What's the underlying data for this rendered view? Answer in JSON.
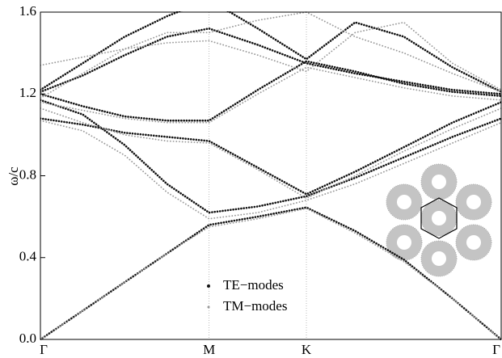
{
  "chart_data": {
    "type": "line",
    "y_label": "ω/c",
    "x": [
      0,
      0.25,
      0.5,
      0.75,
      1,
      1.289,
      1.577,
      1.866,
      2.155,
      2.443,
      2.732
    ],
    "xlim": [
      0,
      2.732
    ],
    "xticks": [
      {
        "value": 0,
        "label": "Γ"
      },
      {
        "value": 1,
        "label": "M"
      },
      {
        "value": 1.577,
        "label": "K"
      },
      {
        "value": 2.732,
        "label": "Γ"
      }
    ],
    "ylim": [
      0,
      1.6
    ],
    "yticks": [
      {
        "value": 0,
        "label": "0.0"
      },
      0.4,
      0.8,
      1.2,
      1.6
    ],
    "grid": true,
    "series": [
      {
        "name": "TE−modes",
        "color": "#111111",
        "bands": [
          [
            0,
            0.14,
            0.28,
            0.42,
            0.56,
            0.6,
            0.645,
            0.53,
            0.39,
            0.2,
            0
          ],
          [
            1.17,
            1.1,
            0.95,
            0.76,
            0.62,
            0.65,
            0.7,
            0.79,
            0.89,
            0.99,
            1.08
          ],
          [
            1.08,
            1.05,
            1.01,
            0.99,
            0.97,
            0.84,
            0.71,
            0.82,
            0.94,
            1.06,
            1.16
          ],
          [
            1.2,
            1.14,
            1.09,
            1.07,
            1.07,
            1.22,
            1.36,
            1.31,
            1.25,
            1.21,
            1.19
          ],
          [
            1.21,
            1.29,
            1.39,
            1.48,
            1.52,
            1.44,
            1.35,
            1.3,
            1.26,
            1.22,
            1.2
          ],
          [
            1.22,
            1.35,
            1.48,
            1.58,
            1.66,
            1.52,
            1.37,
            1.55,
            1.48,
            1.33,
            1.21
          ]
        ]
      },
      {
        "name": "TM−modes",
        "color": "#999999",
        "bands": [
          [
            0,
            0.14,
            0.28,
            0.42,
            0.55,
            0.59,
            0.64,
            0.52,
            0.38,
            0.2,
            0
          ],
          [
            1.07,
            1.02,
            0.9,
            0.72,
            0.59,
            0.62,
            0.68,
            0.76,
            0.86,
            0.96,
            1.06
          ],
          [
            1.13,
            1.06,
            1.0,
            0.97,
            0.96,
            0.83,
            0.69,
            0.8,
            0.92,
            1.03,
            1.13
          ],
          [
            1.16,
            1.12,
            1.08,
            1.06,
            1.06,
            1.2,
            1.33,
            1.28,
            1.23,
            1.19,
            1.17
          ],
          [
            1.34,
            1.38,
            1.42,
            1.45,
            1.46,
            1.39,
            1.31,
            1.5,
            1.55,
            1.35,
            1.22
          ],
          [
            1.18,
            1.3,
            1.42,
            1.5,
            1.5,
            1.56,
            1.6,
            1.48,
            1.4,
            1.3,
            1.21
          ]
        ]
      }
    ],
    "legend": "lower-center"
  }
}
